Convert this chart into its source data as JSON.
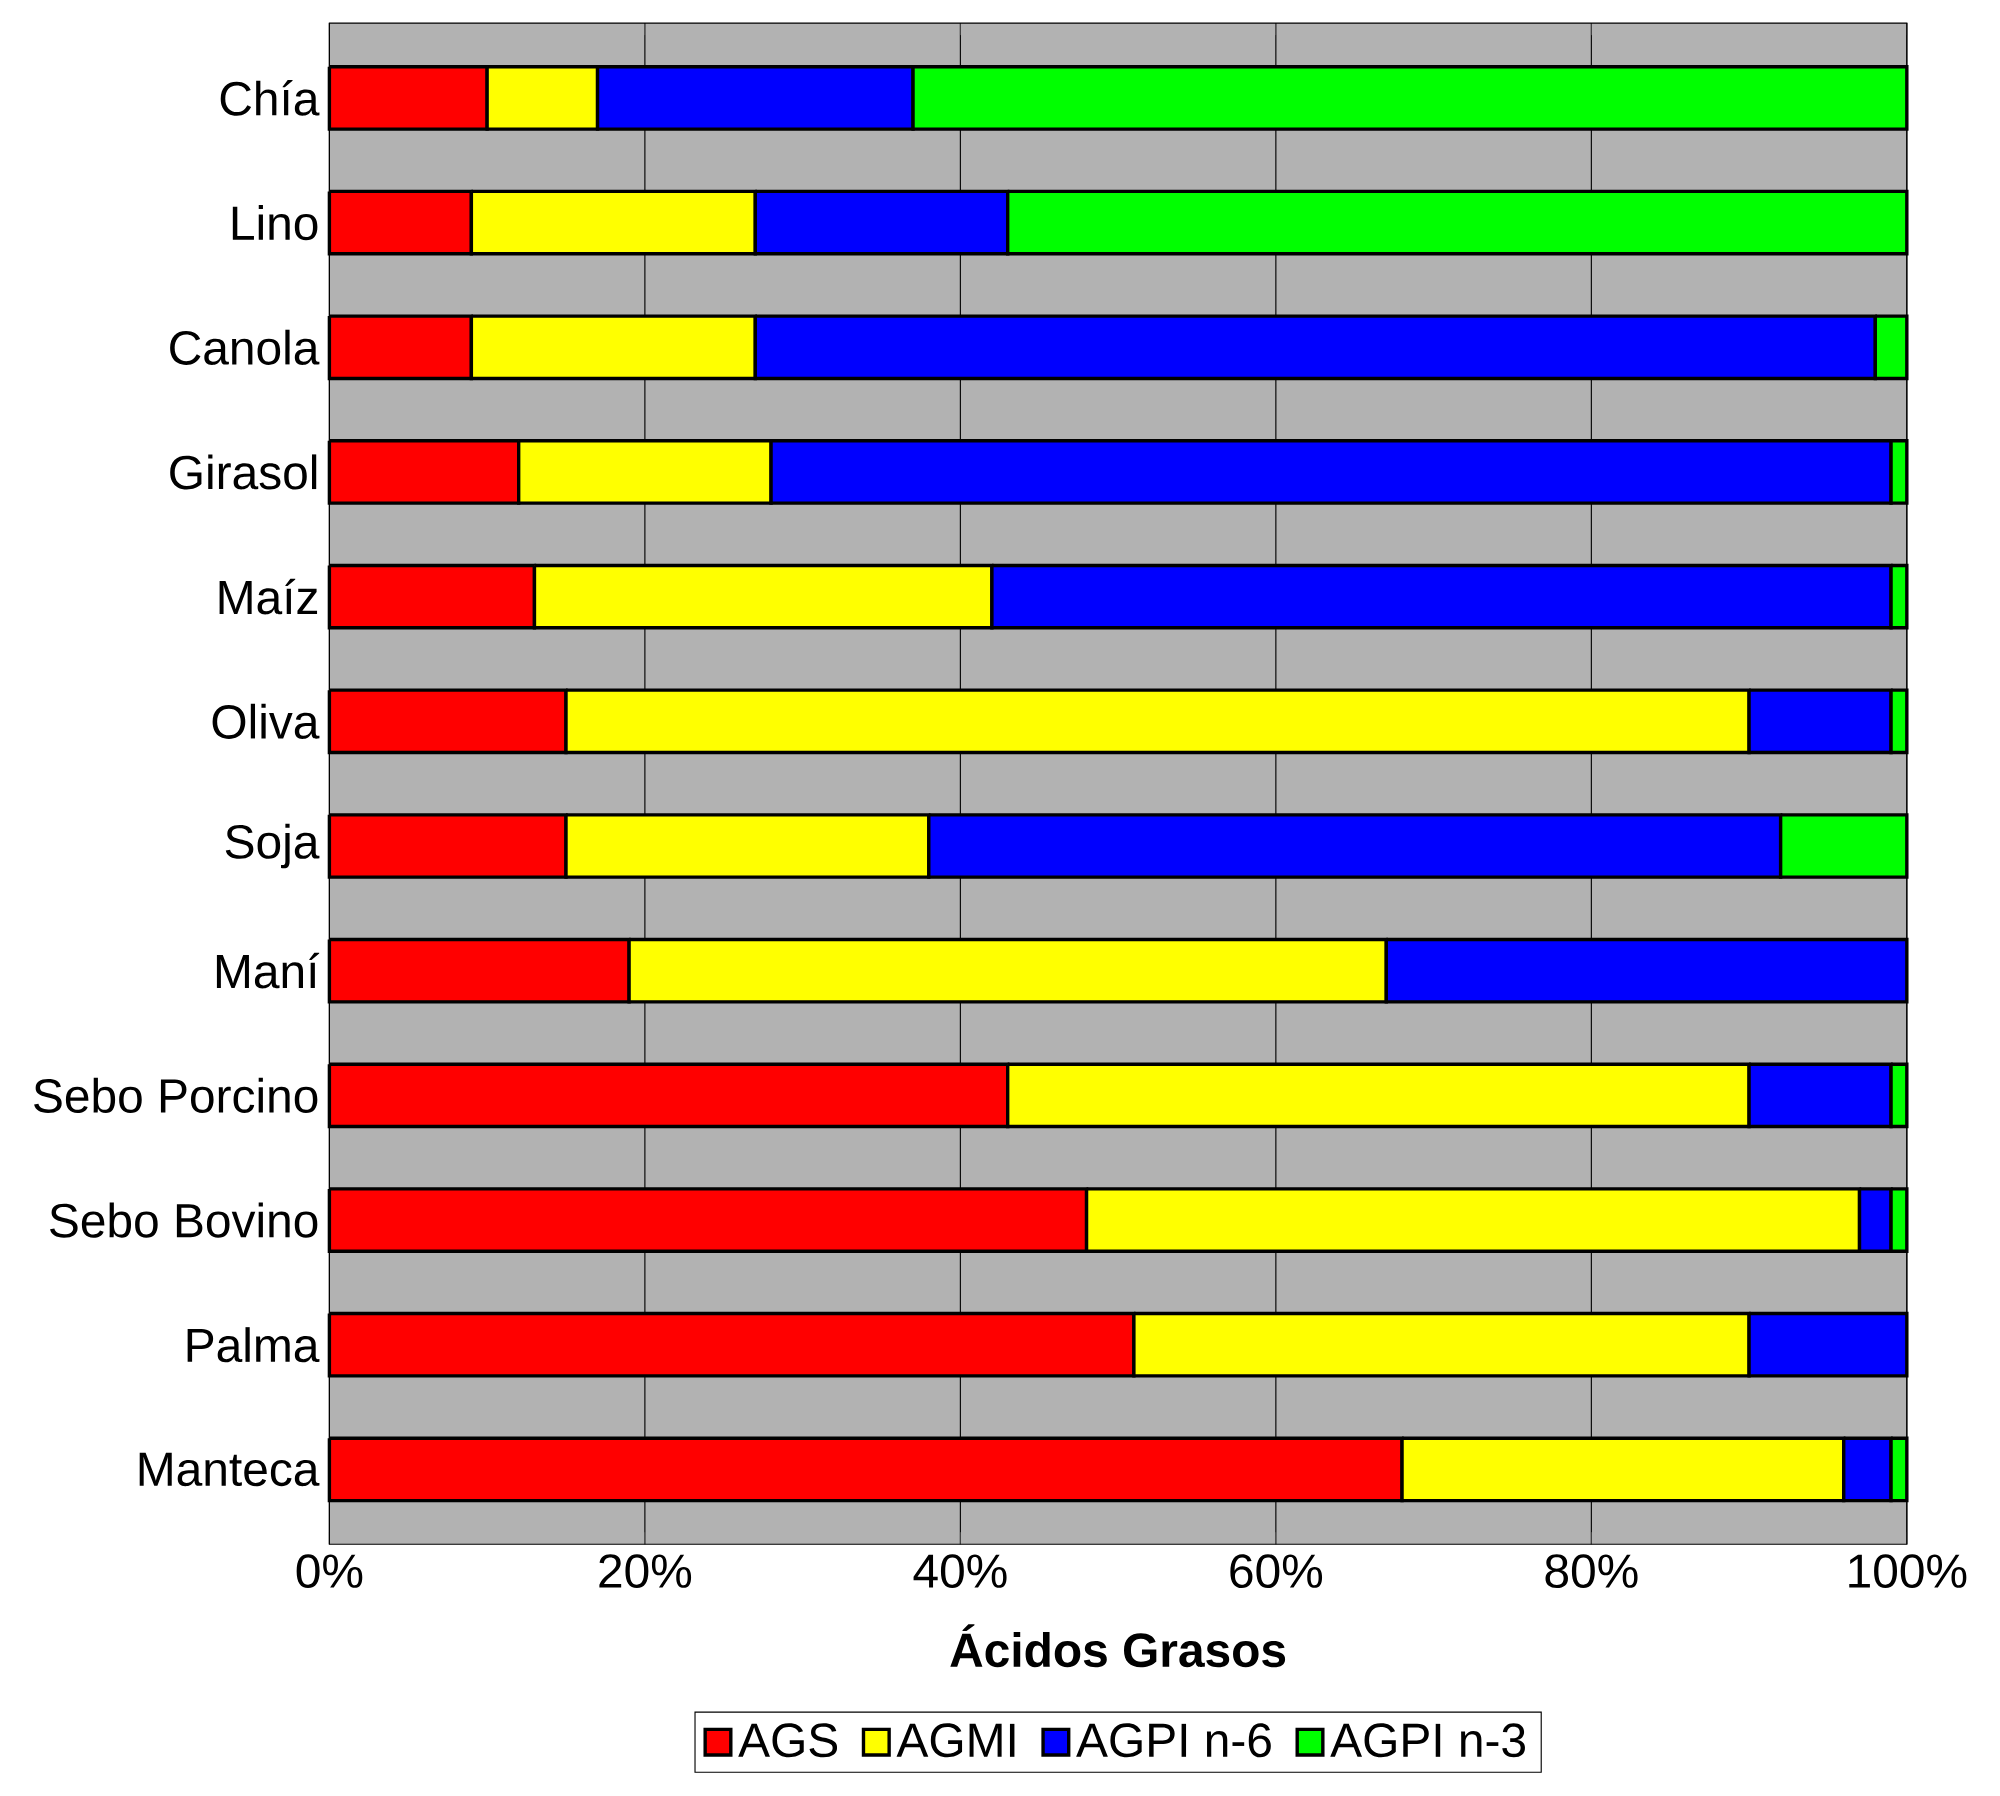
{
  "chart_data": {
    "type": "bar",
    "orientation": "horizontal",
    "stacked": true,
    "xlabel": "Ácidos Grasos",
    "categories": [
      "Chía",
      "Lino",
      "Canola",
      "Girasol",
      "Maíz",
      "Oliva",
      "Soja",
      "Maní",
      "Sebo Porcino",
      "Sebo Bovino",
      "Palma",
      "Manteca"
    ],
    "series": [
      {
        "name": "AGS",
        "color": "#ff0000",
        "values": [
          10,
          9,
          9,
          12,
          13,
          15,
          15,
          19,
          43,
          48,
          51,
          68
        ]
      },
      {
        "name": "AGMI",
        "color": "#ffff00",
        "values": [
          7,
          18,
          18,
          16,
          29,
          75,
          23,
          48,
          47,
          49,
          39,
          28
        ]
      },
      {
        "name": "AGPI n-6",
        "color": "#0000ff",
        "values": [
          20,
          16,
          71,
          71,
          57,
          9,
          54,
          33,
          9,
          2,
          10,
          3
        ]
      },
      {
        "name": "AGPI n-3",
        "color": "#00ff00",
        "values": [
          63,
          57,
          2,
          1,
          1,
          1,
          8,
          0,
          1,
          1,
          0,
          1
        ]
      }
    ],
    "xlim": [
      0,
      100
    ],
    "xticks": [
      {
        "value": 0,
        "label": "0%"
      },
      {
        "value": 20,
        "label": "20%"
      },
      {
        "value": 40,
        "label": "40%"
      },
      {
        "value": 60,
        "label": "60%"
      },
      {
        "value": 80,
        "label": "80%"
      },
      {
        "value": 100,
        "label": "100%"
      }
    ],
    "grid": "x",
    "legend": "bottom"
  }
}
